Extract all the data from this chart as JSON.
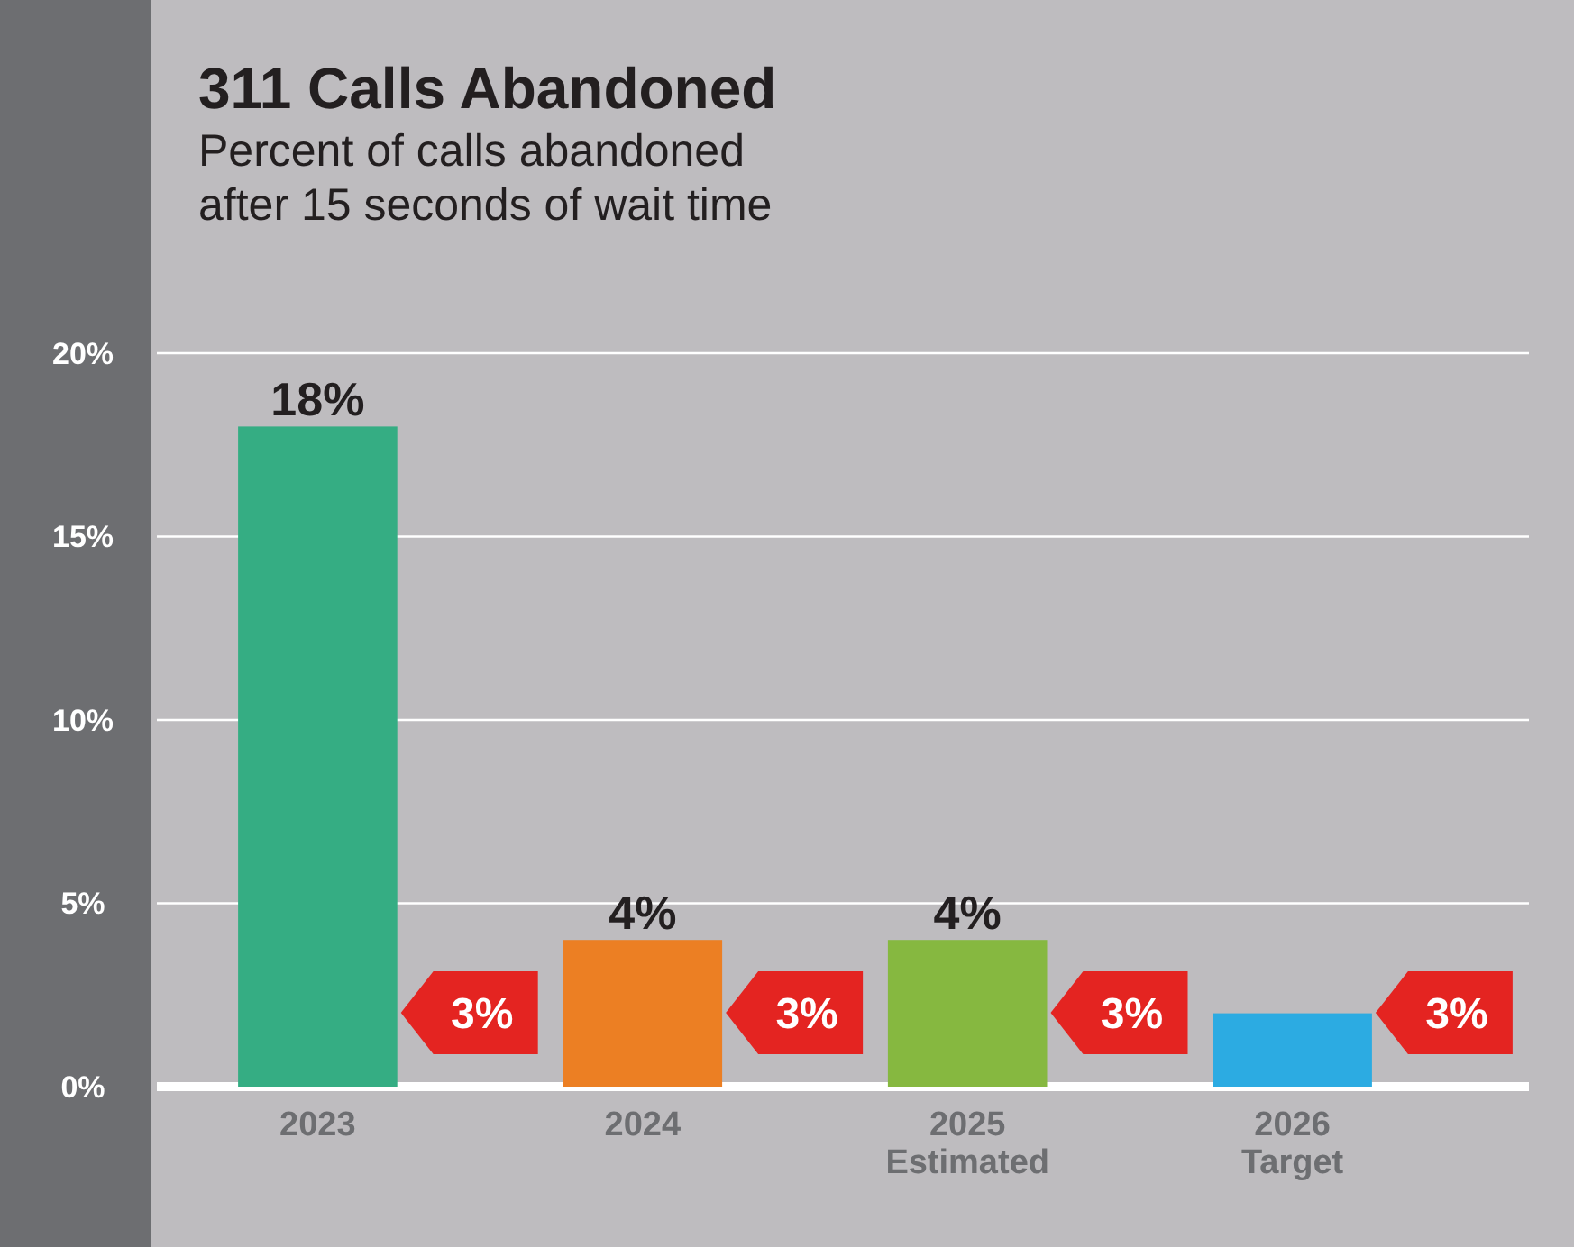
{
  "chart_data": {
    "type": "bar",
    "title": "311 Calls Abandoned",
    "subtitle": "Percent of calls abandoned\nafter 15 seconds of wait time",
    "categories": [
      "2023",
      "2024",
      "2025\nEstimated",
      "2026\nTarget"
    ],
    "values": [
      18,
      4,
      4,
      2
    ],
    "colors": [
      "#35ad83",
      "#ec7f23",
      "#86b840",
      "#2cabe2"
    ],
    "value_labels": [
      "18%",
      "4%",
      "4%",
      null
    ],
    "ylim": [
      0,
      20
    ],
    "yticks": [
      {
        "value": 0,
        "label": "0%"
      },
      {
        "value": 5,
        "label": "5%"
      },
      {
        "value": 10,
        "label": "10%"
      },
      {
        "value": 15,
        "label": "15%"
      },
      {
        "value": 20,
        "label": "20%"
      }
    ],
    "grid": "y",
    "annotations": [
      "3%",
      "3%",
      "3%",
      "3%"
    ]
  }
}
